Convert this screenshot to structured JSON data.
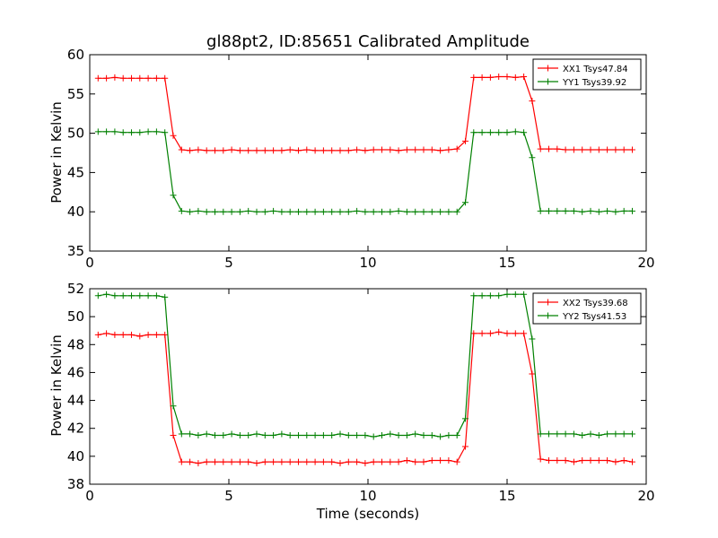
{
  "chart_data": [
    {
      "type": "line",
      "title": "gl88pt2, ID:85651 Calibrated Amplitude",
      "xlabel": "",
      "ylabel": "Power in Kelvin",
      "xlim": [
        0,
        20
      ],
      "ylim": [
        35,
        60
      ],
      "xticks": [
        "0",
        "5",
        "10",
        "15",
        "20"
      ],
      "yticks": [
        "35",
        "40",
        "45",
        "50",
        "55",
        "60"
      ],
      "legend_position": "top-right",
      "grid": false,
      "x": [
        0.3,
        0.6,
        0.9,
        1.2,
        1.5,
        1.8,
        2.1,
        2.4,
        2.7,
        3.0,
        3.3,
        3.6,
        3.9,
        4.2,
        4.5,
        4.8,
        5.1,
        5.4,
        5.7,
        6.0,
        6.3,
        6.6,
        6.9,
        7.2,
        7.5,
        7.8,
        8.1,
        8.4,
        8.7,
        9.0,
        9.3,
        9.6,
        9.9,
        10.2,
        10.5,
        10.8,
        11.1,
        11.4,
        11.7,
        12.0,
        12.3,
        12.6,
        12.9,
        13.2,
        13.5,
        13.8,
        14.1,
        14.4,
        14.7,
        15.0,
        15.3,
        15.6,
        15.9,
        16.2,
        16.5,
        16.8,
        17.1,
        17.4,
        17.7,
        18.0,
        18.3,
        18.6,
        18.9,
        19.2,
        19.5
      ],
      "series": [
        {
          "name": "XX1 Tsys47.84",
          "color": "#ff0000",
          "values": [
            57.0,
            57.0,
            57.1,
            57.0,
            57.0,
            57.0,
            57.0,
            57.0,
            57.0,
            49.7,
            47.9,
            47.8,
            47.9,
            47.8,
            47.8,
            47.8,
            47.9,
            47.8,
            47.8,
            47.8,
            47.8,
            47.8,
            47.8,
            47.9,
            47.8,
            47.9,
            47.8,
            47.8,
            47.8,
            47.8,
            47.8,
            47.9,
            47.8,
            47.9,
            47.9,
            47.9,
            47.8,
            47.9,
            47.9,
            47.9,
            47.9,
            47.8,
            47.9,
            48.0,
            49.0,
            57.1,
            57.1,
            57.1,
            57.2,
            57.2,
            57.1,
            57.2,
            54.1,
            48.0,
            48.0,
            48.0,
            47.9,
            47.9,
            47.9,
            47.9,
            47.9,
            47.9,
            47.9,
            47.9,
            47.9
          ]
        },
        {
          "name": "YY1 Tsys39.92",
          "color": "#008000",
          "values": [
            50.2,
            50.2,
            50.2,
            50.1,
            50.1,
            50.1,
            50.2,
            50.2,
            50.1,
            42.1,
            40.1,
            40.0,
            40.1,
            40.0,
            40.0,
            40.0,
            40.0,
            40.0,
            40.1,
            40.0,
            40.0,
            40.1,
            40.0,
            40.0,
            40.0,
            40.0,
            40.0,
            40.0,
            40.0,
            40.0,
            40.0,
            40.1,
            40.0,
            40.0,
            40.0,
            40.0,
            40.1,
            40.0,
            40.0,
            40.0,
            40.0,
            40.0,
            40.0,
            40.0,
            41.2,
            50.1,
            50.1,
            50.1,
            50.1,
            50.1,
            50.2,
            50.1,
            46.9,
            40.1,
            40.1,
            40.1,
            40.1,
            40.1,
            40.0,
            40.1,
            40.0,
            40.1,
            40.0,
            40.1,
            40.1
          ]
        }
      ]
    },
    {
      "type": "line",
      "title": "",
      "xlabel": "Time (seconds)",
      "ylabel": "Power in Kelvin",
      "xlim": [
        0,
        20
      ],
      "ylim": [
        38,
        52
      ],
      "xticks": [
        "0",
        "5",
        "10",
        "15",
        "20"
      ],
      "yticks": [
        "38",
        "40",
        "42",
        "44",
        "46",
        "48",
        "50",
        "52"
      ],
      "legend_position": "top-right",
      "grid": false,
      "x": [
        0.3,
        0.6,
        0.9,
        1.2,
        1.5,
        1.8,
        2.1,
        2.4,
        2.7,
        3.0,
        3.3,
        3.6,
        3.9,
        4.2,
        4.5,
        4.8,
        5.1,
        5.4,
        5.7,
        6.0,
        6.3,
        6.6,
        6.9,
        7.2,
        7.5,
        7.8,
        8.1,
        8.4,
        8.7,
        9.0,
        9.3,
        9.6,
        9.9,
        10.2,
        10.5,
        10.8,
        11.1,
        11.4,
        11.7,
        12.0,
        12.3,
        12.6,
        12.9,
        13.2,
        13.5,
        13.8,
        14.1,
        14.4,
        14.7,
        15.0,
        15.3,
        15.6,
        15.9,
        16.2,
        16.5,
        16.8,
        17.1,
        17.4,
        17.7,
        18.0,
        18.3,
        18.6,
        18.9,
        19.2,
        19.5
      ],
      "series": [
        {
          "name": "XX2 Tsys39.68",
          "color": "#ff0000",
          "values": [
            48.7,
            48.8,
            48.7,
            48.7,
            48.7,
            48.6,
            48.7,
            48.7,
            48.7,
            41.5,
            39.6,
            39.6,
            39.5,
            39.6,
            39.6,
            39.6,
            39.6,
            39.6,
            39.6,
            39.5,
            39.6,
            39.6,
            39.6,
            39.6,
            39.6,
            39.6,
            39.6,
            39.6,
            39.6,
            39.5,
            39.6,
            39.6,
            39.5,
            39.6,
            39.6,
            39.6,
            39.6,
            39.7,
            39.6,
            39.6,
            39.7,
            39.7,
            39.7,
            39.6,
            40.7,
            48.8,
            48.8,
            48.8,
            48.9,
            48.8,
            48.8,
            48.8,
            45.9,
            39.8,
            39.7,
            39.7,
            39.7,
            39.6,
            39.7,
            39.7,
            39.7,
            39.7,
            39.6,
            39.7,
            39.6
          ]
        },
        {
          "name": "YY2 Tsys41.53",
          "color": "#008000",
          "values": [
            51.5,
            51.6,
            51.5,
            51.5,
            51.5,
            51.5,
            51.5,
            51.5,
            51.4,
            43.6,
            41.6,
            41.6,
            41.5,
            41.6,
            41.5,
            41.5,
            41.6,
            41.5,
            41.5,
            41.6,
            41.5,
            41.5,
            41.6,
            41.5,
            41.5,
            41.5,
            41.5,
            41.5,
            41.5,
            41.6,
            41.5,
            41.5,
            41.5,
            41.4,
            41.5,
            41.6,
            41.5,
            41.5,
            41.6,
            41.5,
            41.5,
            41.4,
            41.5,
            41.5,
            42.7,
            51.5,
            51.5,
            51.5,
            51.5,
            51.6,
            51.6,
            51.6,
            48.4,
            41.6,
            41.6,
            41.6,
            41.6,
            41.6,
            41.5,
            41.6,
            41.5,
            41.6,
            41.6,
            41.6,
            41.6
          ]
        }
      ]
    }
  ]
}
